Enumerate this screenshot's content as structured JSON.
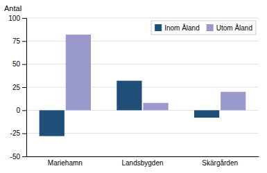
{
  "chart_data": {
    "type": "bar",
    "ylabel": "Antal",
    "categories": [
      "Mariehamn",
      "Landsbygden",
      "Skärgården"
    ],
    "series": [
      {
        "name": "Inom Åland",
        "color": "#1f4e79",
        "values": [
          -28,
          32,
          -8
        ]
      },
      {
        "name": "Utom Åland",
        "color": "#9999cc",
        "values": [
          82,
          8,
          20
        ]
      }
    ],
    "ylim": [
      -50,
      100
    ],
    "yticks": [
      -50,
      -25,
      0,
      25,
      50,
      75,
      100
    ],
    "grid": true,
    "legend": "upper right"
  }
}
